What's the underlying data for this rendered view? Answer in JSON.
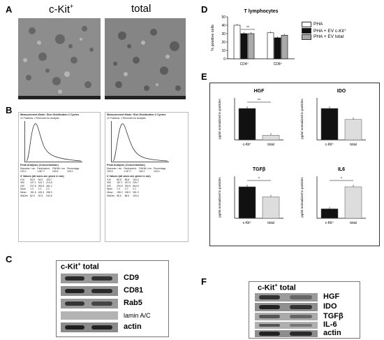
{
  "panels": {
    "A": "A",
    "B": "B",
    "C": "C",
    "D": "D",
    "E": "E",
    "F": "F"
  },
  "panelA": {
    "left_title": "c-Kit",
    "left_sup": "+",
    "right_title": "total"
  },
  "panelB": {
    "left": {
      "mode": "Measurement Mode: Size Distribution 2 Cycles",
      "particles": "11 Positions, 2 Removed for Analysis",
      "peak": "Peak Analysis (Concentration)",
      "cols": [
        "Diameter / nm",
        "Particles/mL",
        "FWHM / nm",
        "Percentage"
      ],
      "vals": [
        "103.2",
        "1.6E+7",
        "150.6",
        "100.0"
      ],
      "xvals_hdr": "X Values (all sizes are given in nm)",
      "rows": [
        [
          "X10",
          "83.5",
          "83.5",
          "103.7"
        ],
        [
          "X50",
          "137.1",
          "151.7",
          "213.8"
        ],
        [
          "X90",
          "237.8",
          "282.8",
          "481.2"
        ],
        [
          "Span",
          "1.3",
          "1.0",
          "2.2"
        ],
        [
          "Mean",
          "151.6",
          "183.4",
          "288.3"
        ],
        [
          "StdDev",
          "82.5",
          "92.5",
          "244.5"
        ]
      ]
    },
    "right": {
      "mode": "Measurement Mode: Size Distribution 2 Cycles",
      "particles": "11 Positions, 1 Removed for Analysis",
      "peak": "Peak Analysis (Concentration)",
      "cols": [
        "Diameter / nm",
        "Particles/mL",
        "FWHM / nm",
        "Percentage"
      ],
      "vals": [
        "109.5",
        "1.0E+7",
        "182.2",
        "100.0"
      ],
      "xvals_hdr": "X Values (all sizes are given in nm)",
      "rows": [
        [
          "X10",
          "88.8",
          "88.8",
          "164.3"
        ],
        [
          "X50",
          "187.1",
          "187.5",
          "226.7"
        ],
        [
          "X90",
          "294.5",
          "294.5",
          "564.5"
        ],
        [
          "Span",
          "1.3",
          "1.0",
          "2.2"
        ],
        [
          "Mean",
          "198.2",
          "198.2",
          "351.9"
        ],
        [
          "StdDev",
          "98.6",
          "88.5",
          "194.4"
        ]
      ]
    }
  },
  "panelC": {
    "header": "c-Kit",
    "header_sup": "+",
    "header_rest": " total",
    "labels": [
      "CD9",
      "CD81",
      "Rab5",
      "lamin A/C",
      "actin"
    ]
  },
  "panelF": {
    "header": "c-Kit",
    "header_sup": "+",
    "header_rest": " total",
    "labels": [
      "HGF",
      "IDO",
      "TGFβ",
      "IL-6",
      "actin"
    ]
  },
  "panelD": {
    "legend": [
      {
        "name": "PHA",
        "color": "#ffffff"
      },
      {
        "name": "PHA + EV c-Kit⁺",
        "color": "#111111"
      },
      {
        "name": "PHA + EV total",
        "color": "#aaaaaa"
      }
    ]
  },
  "chart_data": [
    {
      "type": "bar",
      "title": "T lymphocytes",
      "ylabel": "% positive cells",
      "ylim": [
        0,
        50
      ],
      "yticks": [
        0,
        10,
        20,
        30,
        40,
        50
      ],
      "categories": [
        "CD4⁺",
        "CD8⁺"
      ],
      "series": [
        {
          "name": "PHA",
          "color": "#ffffff",
          "values": [
            40,
            31
          ]
        },
        {
          "name": "PHA + EV c-Kit⁺",
          "color": "#111111",
          "values": [
            30,
            25
          ]
        },
        {
          "name": "PHA + EV total",
          "color": "#aaaaaa",
          "values": [
            30,
            28
          ]
        }
      ],
      "annotations": [
        "**"
      ]
    },
    {
      "type": "bar",
      "title": "HGF",
      "ylabel": "pg/ml normalized to particles",
      "categories": [
        "c-Kit⁺",
        "total"
      ],
      "values": [
        1,
        0.15
      ],
      "colors": [
        "#111111",
        "#dddddd"
      ],
      "annotations": [
        "**"
      ]
    },
    {
      "type": "bar",
      "title": "IDO",
      "ylabel": "pg/ml normalized to particles",
      "categories": [
        "c-Kit⁺",
        "total"
      ],
      "values": [
        1,
        0.65
      ],
      "colors": [
        "#111111",
        "#dddddd"
      ],
      "annotations": []
    },
    {
      "type": "bar",
      "title": "TGFβ",
      "ylabel": "pg/ml normalized to particles",
      "categories": [
        "c-Kit⁺",
        "total"
      ],
      "values": [
        1,
        0.68
      ],
      "colors": [
        "#111111",
        "#dddddd"
      ],
      "annotations": [
        "*"
      ]
    },
    {
      "type": "bar",
      "title": "IL6",
      "ylabel": "pg/ml normalized to particles",
      "categories": [
        "c-Kit⁺",
        "total"
      ],
      "values": [
        0.3,
        1
      ],
      "colors": [
        "#111111",
        "#dddddd"
      ],
      "annotations": [
        "*"
      ]
    }
  ]
}
